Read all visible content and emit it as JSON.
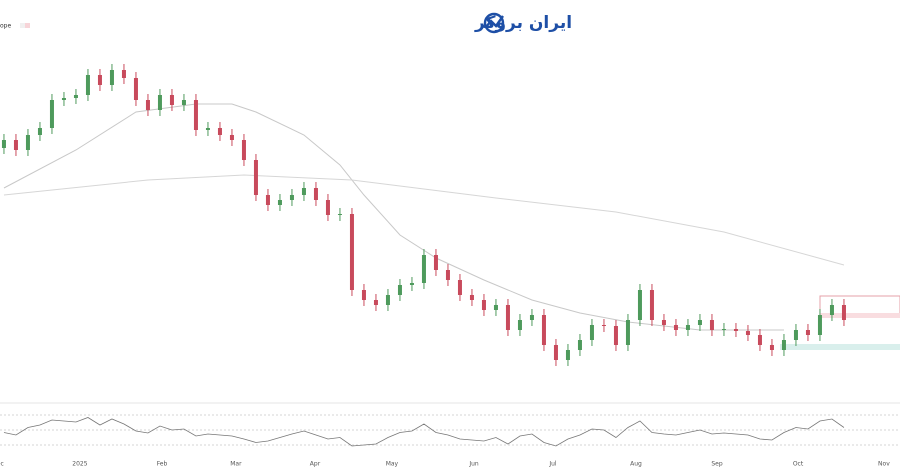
{
  "header": {
    "logo": "ایران بروکر",
    "legend_text": "ope"
  },
  "chart_data": [
    {
      "type": "candlestick",
      "x": [
        0,
        1,
        2,
        3,
        4,
        5,
        6,
        7,
        8,
        9,
        10,
        11,
        12,
        13,
        14,
        15,
        16,
        17,
        18,
        19,
        20,
        21,
        22,
        23,
        24,
        25,
        26,
        27,
        28,
        29,
        30,
        31,
        32,
        33,
        34,
        35,
        36,
        37,
        38,
        39,
        40,
        41,
        42,
        43,
        44,
        45,
        46,
        47,
        48,
        49,
        50,
        51,
        52,
        53,
        54,
        55,
        56,
        57,
        58,
        59,
        60,
        61,
        62,
        63,
        64,
        65,
        66,
        67,
        68,
        69,
        70
      ],
      "open": [
        63,
        65,
        62.5,
        66.25,
        68,
        75,
        75.5,
        76.25,
        81.25,
        78.75,
        82.5,
        80.5,
        75,
        72.5,
        76.25,
        73.75,
        75,
        67.5,
        68,
        66.25,
        65,
        60,
        51.25,
        48.75,
        50,
        51.25,
        53,
        50,
        46.25,
        46.5,
        27.5,
        25,
        23.75,
        26.25,
        28.75,
        29.25,
        36.25,
        32.5,
        30,
        26.25,
        25,
        22.5,
        23.75,
        17.5,
        20,
        21.25,
        13.75,
        10,
        12.5,
        15,
        18.75,
        18.5,
        13.75,
        20,
        27.5,
        20,
        18.75,
        17.5,
        18.75,
        20,
        17.5,
        17.75,
        17.25,
        16.25,
        13.75,
        12.5,
        15,
        17.5,
        16.25,
        21.25,
        23.75
      ],
      "high": [
        66.5,
        66.5,
        67.75,
        69.5,
        76.5,
        77,
        77.75,
        82.75,
        82.75,
        84,
        84,
        82,
        76.5,
        77.75,
        77.75,
        76.5,
        76.5,
        69.5,
        69.5,
        67.75,
        66.5,
        61.5,
        52.75,
        51.5,
        52.75,
        54.5,
        54.5,
        51.5,
        48,
        48,
        29,
        26.5,
        27.75,
        30.25,
        30.75,
        37.75,
        37.75,
        34,
        31.5,
        27.75,
        26.5,
        25.25,
        25.25,
        21.5,
        22.75,
        22.75,
        15.25,
        14,
        16.5,
        20.25,
        20.25,
        20,
        21.5,
        29,
        29,
        21.5,
        20.25,
        20.25,
        21.5,
        21.5,
        19.25,
        19.25,
        18.75,
        17.75,
        15.25,
        16.5,
        19,
        19,
        22.75,
        25.25,
        25.25
      ],
      "low": [
        61.5,
        61,
        61,
        64.75,
        66.5,
        73.5,
        74,
        74.75,
        77.25,
        77.25,
        79,
        73.5,
        71,
        71,
        72.25,
        72.25,
        66,
        66,
        64.75,
        63.5,
        58.5,
        49.75,
        47.25,
        47.25,
        48.5,
        49.75,
        48.5,
        44.75,
        44.75,
        26,
        23.5,
        22.25,
        22.25,
        24.75,
        27.25,
        27.75,
        31,
        28.5,
        24.75,
        23.5,
        21,
        21,
        16,
        16,
        18.5,
        12.25,
        8.5,
        8.5,
        11,
        13.5,
        17,
        12.25,
        12.25,
        18.5,
        18.5,
        17.25,
        16,
        16,
        17.25,
        16,
        16,
        15.75,
        14.75,
        12.25,
        11,
        11,
        13.5,
        14.75,
        14.75,
        19.75,
        18.5
      ],
      "close": [
        65,
        62.5,
        66.25,
        68,
        75,
        75.5,
        76.25,
        81.25,
        78.75,
        82.5,
        80.5,
        75,
        72.5,
        76.25,
        73.75,
        75,
        67.5,
        68,
        66.25,
        65,
        60,
        51.25,
        48.75,
        50,
        51.25,
        53,
        50,
        46.25,
        46.5,
        27.5,
        25,
        23.75,
        26.25,
        28.75,
        29.25,
        36.25,
        32.5,
        30,
        26.25,
        25,
        22.5,
        23.75,
        17.5,
        20,
        21.25,
        13.75,
        10,
        12.5,
        15,
        18.75,
        18.5,
        13.75,
        20,
        27.5,
        20,
        18.75,
        17.5,
        18.75,
        20,
        17.5,
        17.75,
        17.25,
        16.25,
        13.75,
        12.5,
        15,
        17.5,
        16.25,
        21.25,
        23.75,
        20
      ],
      "up_color": "#4e9a5c",
      "down_color": "#c84a5c",
      "xlim": [
        -0.33,
        74.67
      ],
      "ylim": [
        0,
        100
      ],
      "xticks": [
        {
          "value": -0.5,
          "label": "Dec"
        },
        {
          "value": 6.33,
          "label": "2025"
        },
        {
          "value": 13.17,
          "label": "Feb"
        },
        {
          "value": 19.33,
          "label": "Mar"
        },
        {
          "value": 25.92,
          "label": "Apr"
        },
        {
          "value": 32.33,
          "label": "May"
        },
        {
          "value": 39.17,
          "label": "Jun"
        },
        {
          "value": 45.75,
          "label": "Jul"
        },
        {
          "value": 52.67,
          "label": "Aug"
        },
        {
          "value": 59.42,
          "label": "Sep"
        },
        {
          "value": 66.17,
          "label": "Oct"
        },
        {
          "value": 73.33,
          "label": "Nov"
        }
      ],
      "lines": [
        {
          "color": "#c8c8c8",
          "x": [
            0,
            6,
            11,
            16,
            19,
            21,
            25,
            28,
            30,
            33,
            36,
            40,
            44,
            48,
            52,
            58,
            65
          ],
          "values": [
            53,
            62.5,
            72,
            74,
            74,
            72,
            66.25,
            58.75,
            51.25,
            41.25,
            35.5,
            30,
            25,
            21.75,
            19.5,
            17.5,
            17.5
          ]
        },
        {
          "color": "#d6d6d6",
          "x": [
            0,
            12,
            20,
            29,
            41,
            51,
            60,
            70
          ],
          "values": [
            51.25,
            55,
            56.25,
            55,
            50.5,
            47,
            42,
            33.75
          ]
        }
      ]
    },
    {
      "type": "line",
      "color": "#777777",
      "x": [
        0,
        1,
        2,
        3,
        4,
        5,
        6,
        7,
        8,
        9,
        10,
        11,
        12,
        13,
        14,
        15,
        16,
        17,
        18,
        19,
        20,
        21,
        22,
        23,
        24,
        25,
        26,
        27,
        28,
        29,
        30,
        31,
        32,
        33,
        34,
        35,
        36,
        37,
        38,
        39,
        40,
        41,
        42,
        43,
        44,
        45,
        46,
        47,
        48,
        49,
        50,
        51,
        52,
        53,
        54,
        55,
        56,
        57,
        58,
        59,
        60,
        61,
        62,
        63,
        64,
        65,
        66,
        67,
        68,
        69,
        70
      ],
      "values": [
        45,
        40,
        55,
        60,
        70,
        68,
        66,
        75,
        60,
        72,
        62,
        48,
        44,
        58,
        50,
        52,
        38,
        42,
        40,
        38,
        32,
        25,
        28,
        35,
        42,
        48,
        40,
        32,
        35,
        18,
        20,
        22,
        35,
        45,
        48,
        62,
        45,
        40,
        32,
        30,
        28,
        35,
        22,
        38,
        42,
        25,
        18,
        32,
        40,
        52,
        50,
        35,
        55,
        68,
        45,
        42,
        40,
        45,
        50,
        42,
        44,
        42,
        40,
        32,
        30,
        45,
        55,
        52,
        68,
        72,
        55
      ],
      "xlim": [
        -0.33,
        74.67
      ],
      "ylim": [
        0,
        100
      ],
      "levels": [
        80,
        50,
        20
      ]
    }
  ]
}
